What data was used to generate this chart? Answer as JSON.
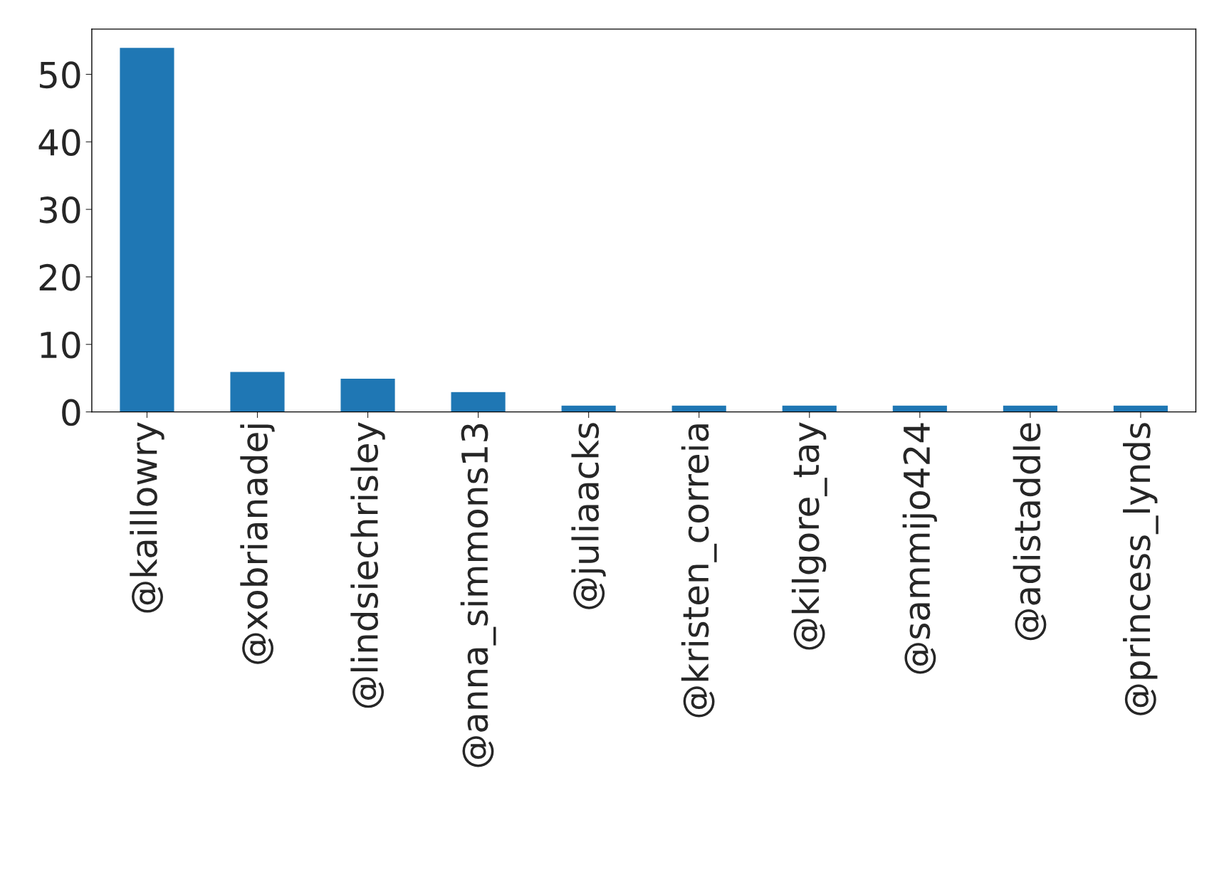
{
  "chart_data": {
    "type": "bar",
    "categories": [
      "@kaillowry",
      "@xobrianadej",
      "@lindsiechrisley",
      "@anna_simmons13",
      "@juliaacks",
      "@kristen_correia",
      "@kilgore_tay",
      "@sammijo424",
      "@adistaddle",
      "@princess_lynds"
    ],
    "values": [
      54,
      6,
      5,
      3,
      1,
      1,
      1,
      1,
      1,
      1
    ],
    "color": "#1f77b4",
    "ylim": [
      0,
      56.7
    ],
    "yticks": [
      0,
      10,
      20,
      30,
      40,
      50
    ],
    "grid": false
  }
}
